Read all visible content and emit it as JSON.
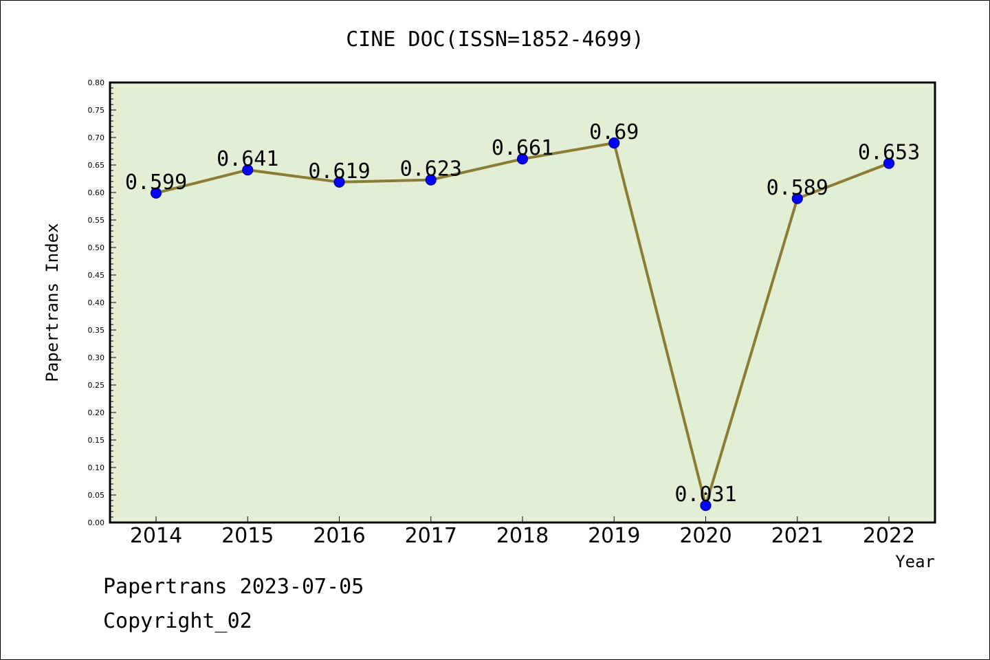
{
  "chart_data": {
    "type": "line",
    "title": "CINE DOC(ISSN=1852-4699)",
    "xlabel": "Year",
    "ylabel": "Papertrans Index",
    "categories": [
      "2014",
      "2015",
      "2016",
      "2017",
      "2018",
      "2019",
      "2020",
      "2021",
      "2022"
    ],
    "values": [
      0.599,
      0.641,
      0.619,
      0.623,
      0.661,
      0.69,
      0.031,
      0.589,
      0.653
    ],
    "data_labels": [
      "0.599",
      "0.641",
      "0.619",
      "0.623",
      "0.661",
      "0.69",
      "0.031",
      "0.589",
      "0.653"
    ],
    "ylim": [
      0.0,
      0.8
    ],
    "yticks": [
      "0.00",
      "0.05",
      "0.10",
      "0.15",
      "0.20",
      "0.25",
      "0.30",
      "0.35",
      "0.40",
      "0.45",
      "0.50",
      "0.55",
      "0.60",
      "0.65",
      "0.70",
      "0.75",
      "0.80"
    ],
    "grid": false,
    "legend": "none",
    "colors": {
      "plot_background": "#e2efd5",
      "line": "#8b7d35",
      "marker_fill": "#0000ff",
      "marker_edge": "#00008b"
    }
  },
  "footer": {
    "source": "Papertrans 2023-07-05",
    "copyright": "Copyright_02"
  }
}
